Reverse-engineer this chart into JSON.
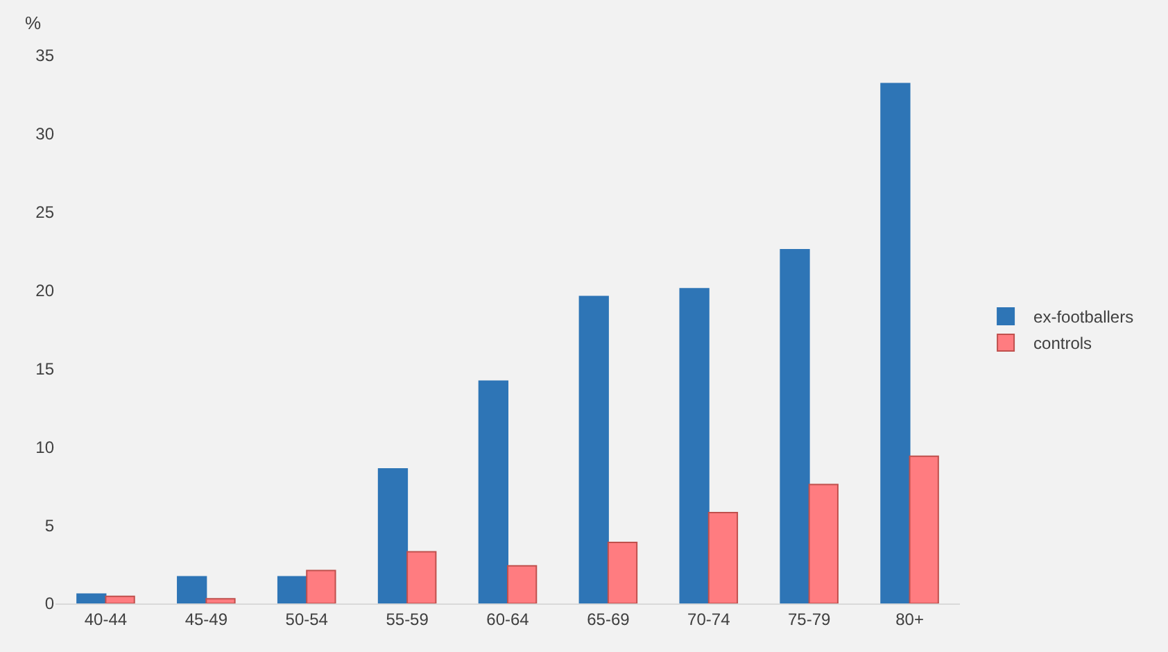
{
  "chart_data": {
    "type": "bar",
    "ylabel": "%",
    "categories": [
      "40-44",
      "45-49",
      "50-54",
      "55-59",
      "60-64",
      "65-69",
      "70-74",
      "75-79",
      "80+"
    ],
    "series": [
      {
        "name": "ex-footballers",
        "color": "#2e75b6",
        "values": [
          0.6,
          1.7,
          1.7,
          8.6,
          14.2,
          19.6,
          20.1,
          22.6,
          33.2
        ]
      },
      {
        "name": "controls",
        "color": "#ff7c80",
        "values": [
          0.45,
          0.3,
          2.1,
          3.3,
          2.4,
          3.9,
          5.8,
          7.6,
          9.4
        ]
      }
    ],
    "ylim": [
      0,
      35
    ],
    "yticks": [
      0,
      5,
      10,
      15,
      20,
      25,
      30,
      35
    ],
    "grid": false,
    "legend": "right"
  }
}
